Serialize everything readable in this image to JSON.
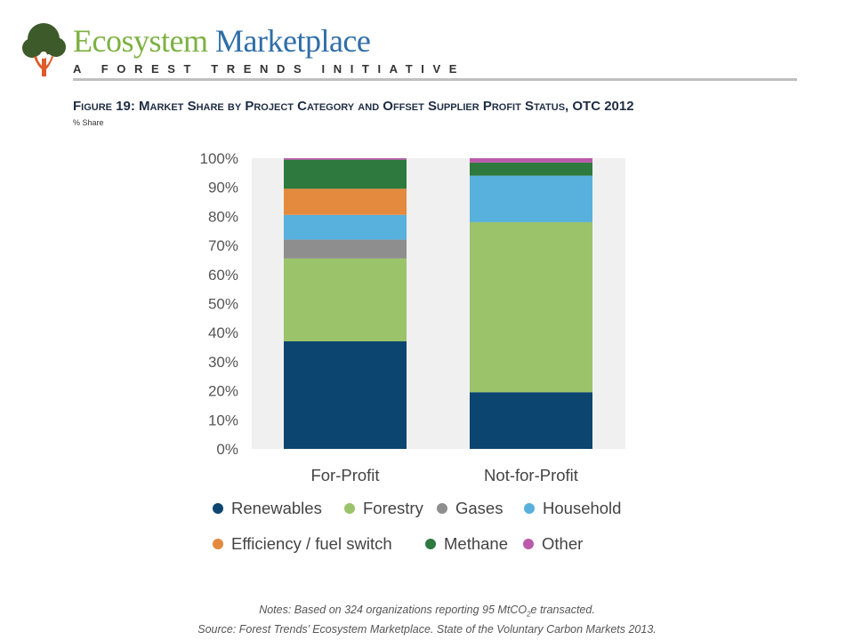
{
  "brand": {
    "name_part1": "Ecosystem",
    "name_part2": "Marketplace",
    "tagline": "A FOREST TRENDS INITIATIVE"
  },
  "figure": {
    "title": "Figure 19: Market Share by Project Category and Offset Supplier Profit Status, OTC 2012",
    "subtitle": "% Share"
  },
  "notes": {
    "line1_pre": "Notes: Based on 324 organizations reporting 95 MtCO",
    "line1_sub": "2",
    "line1_post": "e transacted.",
    "line2": "Source: Forest Trends’ Ecosystem Marketplace. State of the Voluntary Carbon Markets 2013."
  },
  "colors": {
    "Renewables": "#0b4570",
    "Forestry": "#9bc36a",
    "Gases": "#8e8e8e",
    "Household": "#58b0dc",
    "Efficiency / fuel switch": "#e38a3f",
    "Methane": "#2e7a3e",
    "Other": "#bb5aaa",
    "plot_background": "#f0f0f0",
    "brand_green": "#7db142",
    "brand_blue": "#2f6ea8"
  },
  "chart_data": {
    "type": "bar",
    "stacked": true,
    "categories": [
      "For-Profit",
      "Not-for-Profit"
    ],
    "series": [
      {
        "name": "Renewables",
        "values": [
          37,
          19.5
        ]
      },
      {
        "name": "Forestry",
        "values": [
          28.5,
          58.5
        ]
      },
      {
        "name": "Gases",
        "values": [
          6.5,
          0
        ]
      },
      {
        "name": "Household",
        "values": [
          8.5,
          16
        ]
      },
      {
        "name": "Efficiency / fuel switch",
        "values": [
          9,
          0
        ]
      },
      {
        "name": "Methane",
        "values": [
          10,
          4.5
        ]
      },
      {
        "name": "Other",
        "values": [
          0.5,
          1.5
        ]
      }
    ],
    "yticks": [
      "0%",
      "10%",
      "20%",
      "30%",
      "40%",
      "50%",
      "60%",
      "70%",
      "80%",
      "90%",
      "100%"
    ],
    "ylim": [
      0,
      100
    ],
    "grid": false,
    "legend_position": "bottom"
  }
}
